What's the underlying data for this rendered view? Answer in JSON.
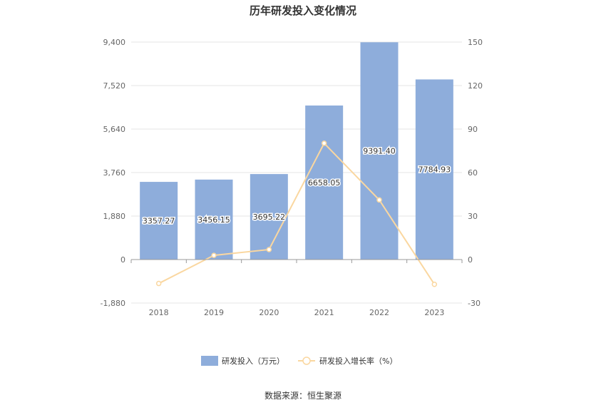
{
  "chart_data": {
    "type": "bar",
    "title": "历年研发投入变化情况",
    "categories": [
      "2018",
      "2019",
      "2020",
      "2021",
      "2022",
      "2023"
    ],
    "series": [
      {
        "name": "研发投入（万元）",
        "type": "bar",
        "axis": "left",
        "color": "#8eaddb",
        "values": [
          3357.27,
          3456.15,
          3695.22,
          6658.05,
          9391.4,
          7784.93
        ],
        "labels": [
          "3357.27",
          "3456.15",
          "3695.22",
          "6658.05",
          "9391.40",
          "7784.93"
        ]
      },
      {
        "name": "研发投入增长率（%）",
        "type": "line",
        "axis": "right",
        "color": "#fad7a0",
        "values": [
          -16.5,
          2.9,
          6.9,
          80.2,
          41.1,
          -17.1
        ]
      }
    ],
    "left_axis": {
      "min": -1880,
      "max": 9400,
      "ticks": [
        "-1,880",
        "0",
        "1,880",
        "3,760",
        "5,640",
        "7,520",
        "9,400"
      ],
      "tick_values": [
        -1880,
        0,
        1880,
        3760,
        5640,
        7520,
        9400
      ]
    },
    "right_axis": {
      "min": -30,
      "max": 150,
      "ticks": [
        "-30",
        "0",
        "30",
        "60",
        "90",
        "120",
        "150"
      ],
      "tick_values": [
        -30,
        0,
        30,
        60,
        90,
        120,
        150
      ]
    },
    "grid": true,
    "legend_position": "bottom-center"
  },
  "source": "数据来源：恒生聚源"
}
